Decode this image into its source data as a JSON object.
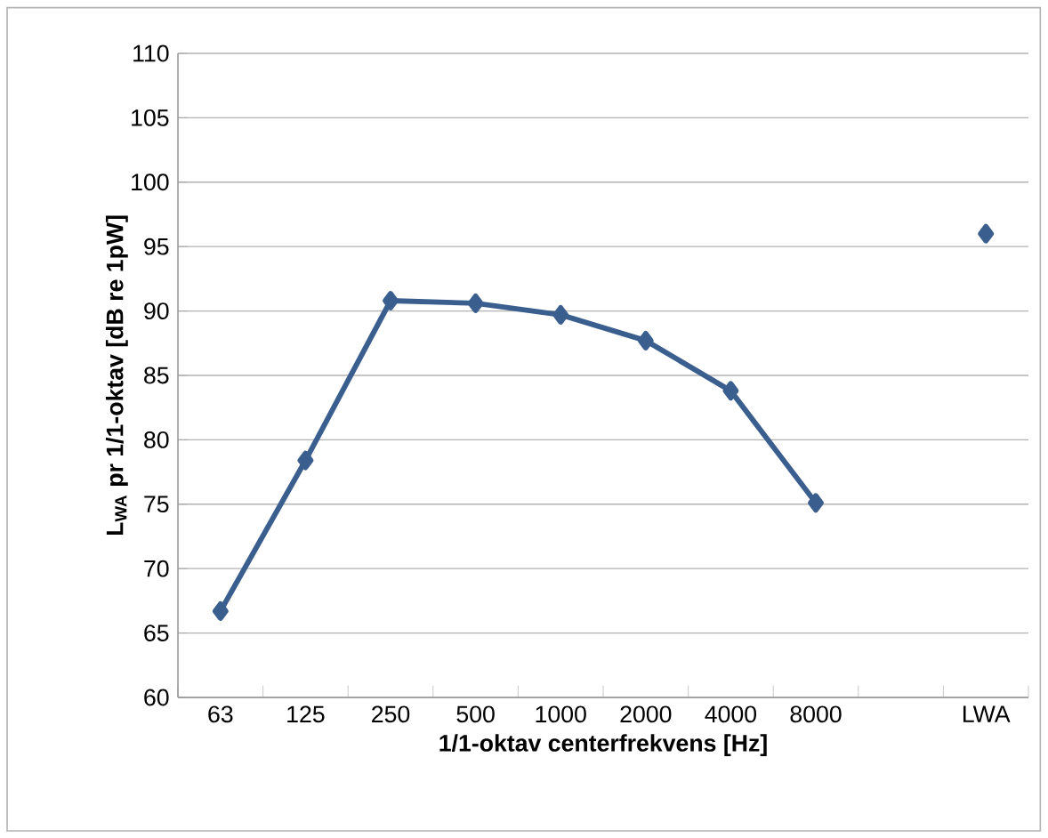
{
  "chart_data": {
    "type": "line",
    "xlabel": "1/1-oktav centerfrekvens [Hz]",
    "ylabel": "L$_{WA}$ pr 1/1-oktav [dB re 1pW]",
    "categories": [
      "63",
      "125",
      "250",
      "500",
      "1000",
      "2000",
      "4000",
      "8000",
      null,
      "LWA"
    ],
    "series": [
      {
        "color": "#3a5f8f",
        "values": [
          66.7,
          78.4,
          90.8,
          90.6,
          89.7,
          87.7,
          83.8,
          75.1,
          null,
          96.0
        ]
      }
    ],
    "ylim": [
      60,
      110
    ],
    "yticks": [
      60,
      65,
      70,
      75,
      80,
      85,
      90,
      95,
      100,
      105,
      110
    ],
    "grid": "y",
    "marker": "diamond",
    "line_style": "solid"
  }
}
